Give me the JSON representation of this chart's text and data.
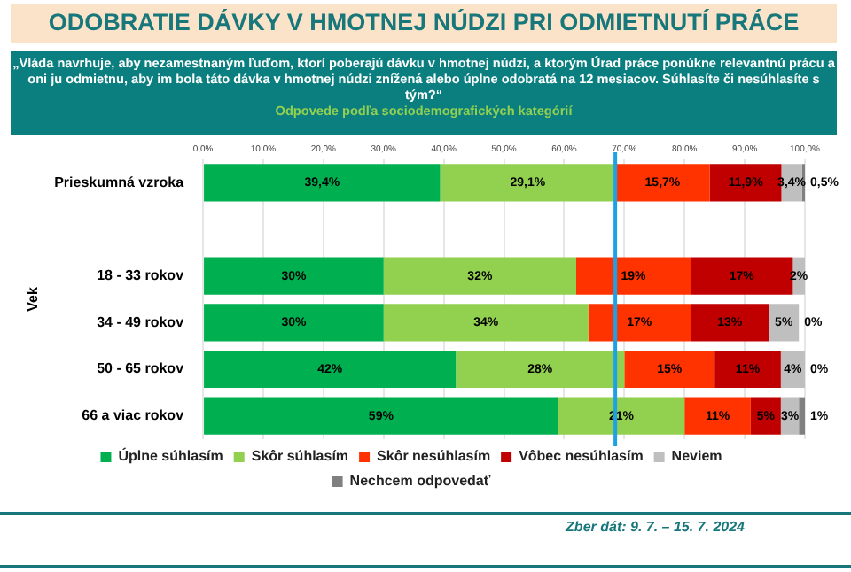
{
  "chart_data": {
    "type": "bar",
    "orientation": "horizontal",
    "stacked": true,
    "title": "ODOBRATIE DÁVKY V HMOTNEJ NÚDZI PRI ODMIETNUTÍ PRÁCE",
    "subtitle": "„Vláda navrhuje, aby nezamestnaným ľuďom, ktorí poberajú dávku v hmotnej núdzi, a ktorým Úrad práce ponúkne relevantnú prácu a oni ju odmietnu, aby im bola táto dávka v hmotnej núdzi znížená alebo úplne odobratá na 12 mesiacov. Súhlasíte či nesúhlasíte s tým?“",
    "annotations": [
      "Odpovede podľa sociodemografických kategórií",
      "Zber dát: 9. 7. – 15. 7. 2024"
    ],
    "ylabel": "Vek",
    "categories": [
      "Prieskumná vzroka",
      null,
      "18 - 33 rokov",
      "34 - 49 rokov",
      "50 - 65 rokov",
      "66 a viac rokov"
    ],
    "series": [
      {
        "name": "Úplne súhlasím",
        "color": "#00b050",
        "values": [
          39.4,
          null,
          30,
          30,
          42,
          59
        ],
        "value_labels": [
          "39,4%",
          null,
          "30%",
          "30%",
          "42%",
          "59%"
        ]
      },
      {
        "name": "Skôr súhlasím",
        "color": "#92d050",
        "values": [
          29.1,
          null,
          32,
          34,
          28,
          21
        ],
        "value_labels": [
          "29,1%",
          null,
          "32%",
          "34%",
          "28%",
          "21%"
        ]
      },
      {
        "name": "Skôr nesúhlasím",
        "color": "#ff3300",
        "values": [
          15.7,
          null,
          19,
          17,
          15,
          11
        ],
        "value_labels": [
          "15,7%",
          null,
          "19%",
          "17%",
          "15%",
          "11%"
        ]
      },
      {
        "name": "Vôbec nesúhlasím",
        "color": "#c00000",
        "values": [
          11.9,
          null,
          17,
          13,
          11,
          5
        ],
        "value_labels": [
          "11,9%",
          null,
          "17%",
          "13%",
          "11%",
          "5%"
        ]
      },
      {
        "name": "Neviem",
        "color": "#bfbfbf",
        "values": [
          3.4,
          null,
          2,
          5,
          4,
          3
        ],
        "value_labels": [
          "3,4%",
          null,
          "2%",
          "5%",
          "4%",
          "3%"
        ]
      },
      {
        "name": "Nechcem odpovedať",
        "color": "#808080",
        "values": [
          0.5,
          null,
          0,
          0,
          0,
          1
        ],
        "value_labels": [
          "0,5%",
          null,
          null,
          "0%",
          "0%",
          "1%"
        ]
      }
    ],
    "xlim": [
      0,
      100
    ],
    "xticks": [
      {
        "value": 0,
        "label": "0,0%"
      },
      {
        "value": 10,
        "label": "10,0%"
      },
      {
        "value": 20,
        "label": "20,0%"
      },
      {
        "value": 30,
        "label": "30,0%"
      },
      {
        "value": 40,
        "label": "40,0%"
      },
      {
        "value": 50,
        "label": "50,0%"
      },
      {
        "value": 60,
        "label": "60,0%"
      },
      {
        "value": 70,
        "label": "70,0%"
      },
      {
        "value": 80,
        "label": "80,0%"
      },
      {
        "value": 90,
        "label": "90,0%"
      },
      {
        "value": 100,
        "label": "100,0%"
      }
    ],
    "ref_lines": [
      {
        "axis": "x",
        "value": 68.5,
        "color": "#1ea0e6"
      }
    ],
    "grid": "x",
    "legend": "bottom"
  }
}
